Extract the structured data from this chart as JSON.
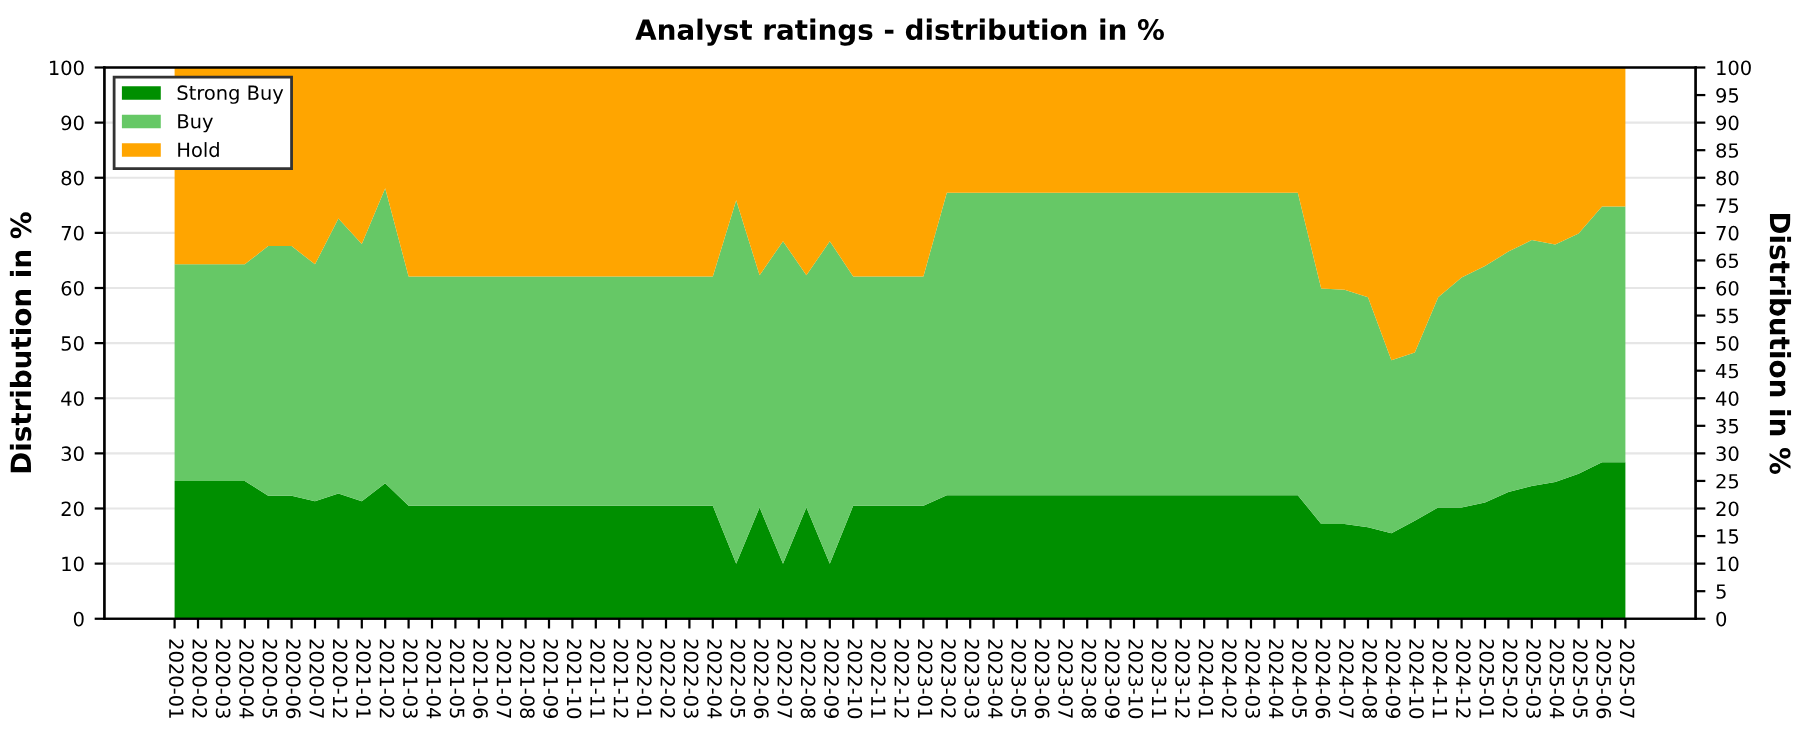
{
  "chart_data": {
    "type": "area",
    "stacked": true,
    "title": "Analyst ratings - distribution in %",
    "ylabel": "Distribution in %",
    "y2label": "Distribution in %",
    "categories": [
      "2020-01",
      "2020-02",
      "2020-03",
      "2020-04",
      "2020-05",
      "2020-06",
      "2020-07",
      "2020-12",
      "2021-01",
      "2021-02",
      "2021-03",
      "2021-04",
      "2021-05",
      "2021-06",
      "2021-07",
      "2021-08",
      "2021-09",
      "2021-10",
      "2021-11",
      "2021-12",
      "2022-01",
      "2022-02",
      "2022-03",
      "2022-04",
      "2022-05",
      "2022-06",
      "2022-07",
      "2022-08",
      "2022-09",
      "2022-10",
      "2022-11",
      "2022-12",
      "2023-01",
      "2023-02",
      "2023-03",
      "2023-04",
      "2023-05",
      "2023-06",
      "2023-07",
      "2023-08",
      "2023-09",
      "2023-10",
      "2023-11",
      "2023-12",
      "2024-01",
      "2024-02",
      "2024-03",
      "2024-04",
      "2024-05",
      "2024-06",
      "2024-07",
      "2024-08",
      "2024-09",
      "2024-10",
      "2024-11",
      "2024-12",
      "2025-01",
      "2025-02",
      "2025-03",
      "2025-04",
      "2025-05",
      "2025-06",
      "2025-07"
    ],
    "series": [
      {
        "name": "Strong Buy",
        "color": "#008f00",
        "values": [
          25,
          25,
          25,
          25,
          22.3,
          22.3,
          21.3,
          22.7,
          21.3,
          24.6,
          20.5,
          20.5,
          20.5,
          20.5,
          20.5,
          20.5,
          20.5,
          20.5,
          20.5,
          20.5,
          20.5,
          20.5,
          20.5,
          20.5,
          10,
          20.2,
          10,
          20.2,
          10,
          20.5,
          20.5,
          20.5,
          20.5,
          22.4,
          22.4,
          22.4,
          22.4,
          22.4,
          22.4,
          22.4,
          22.4,
          22.4,
          22.4,
          22.4,
          22.4,
          22.4,
          22.4,
          22.4,
          22.4,
          17.2,
          17.2,
          16.6,
          15.5,
          17.8,
          20.2,
          20.2,
          21.1,
          23.0,
          24.1,
          24.8,
          26.3,
          28.4,
          28.4
        ]
      },
      {
        "name": "Buy",
        "color": "#66c866",
        "values": [
          39.3,
          39.3,
          39.3,
          39.3,
          45.3,
          45.3,
          43.0,
          49.9,
          46.7,
          53.5,
          41.6,
          41.6,
          41.6,
          41.6,
          41.6,
          41.6,
          41.6,
          41.6,
          41.6,
          41.6,
          41.6,
          41.6,
          41.6,
          41.6,
          65.9,
          42.1,
          58.5,
          42.1,
          58.5,
          41.6,
          41.6,
          41.6,
          41.6,
          54.9,
          54.9,
          54.9,
          54.9,
          54.9,
          54.9,
          54.9,
          54.9,
          54.9,
          54.9,
          54.9,
          54.9,
          54.9,
          54.9,
          54.9,
          54.9,
          42.7,
          42.5,
          41.7,
          31.4,
          30.5,
          38.1,
          41.7,
          42.9,
          43.6,
          44.6,
          43.1,
          43.6,
          46.4,
          46.4
        ]
      },
      {
        "name": "Hold",
        "color": "#ffa500",
        "values": [
          35.7,
          35.7,
          35.7,
          35.7,
          32.4,
          32.4,
          35.7,
          27.4,
          32,
          21.9,
          37.9,
          37.9,
          37.9,
          37.9,
          37.9,
          37.9,
          37.9,
          37.9,
          37.9,
          37.9,
          37.9,
          37.9,
          37.9,
          37.9,
          24.1,
          37.7,
          31.5,
          37.7,
          31.5,
          37.9,
          37.9,
          37.9,
          37.9,
          22.7,
          22.7,
          22.7,
          22.7,
          22.7,
          22.7,
          22.7,
          22.7,
          22.7,
          22.7,
          22.7,
          22.7,
          22.7,
          22.7,
          22.7,
          22.7,
          40.1,
          40.3,
          41.7,
          53.1,
          51.7,
          41.7,
          38.1,
          36.0,
          33.4,
          31.3,
          32.1,
          30.1,
          25.2,
          25.2
        ]
      }
    ],
    "ylim": [
      0,
      100
    ],
    "yticks": [
      0,
      10,
      20,
      30,
      40,
      50,
      60,
      70,
      80,
      90,
      100
    ],
    "y2lim": [
      0,
      100
    ],
    "y2ticks": [
      0,
      5,
      10,
      15,
      20,
      25,
      30,
      35,
      40,
      45,
      50,
      55,
      60,
      65,
      70,
      75,
      80,
      85,
      90,
      95,
      100
    ],
    "grid": "y",
    "legend": "top left"
  }
}
